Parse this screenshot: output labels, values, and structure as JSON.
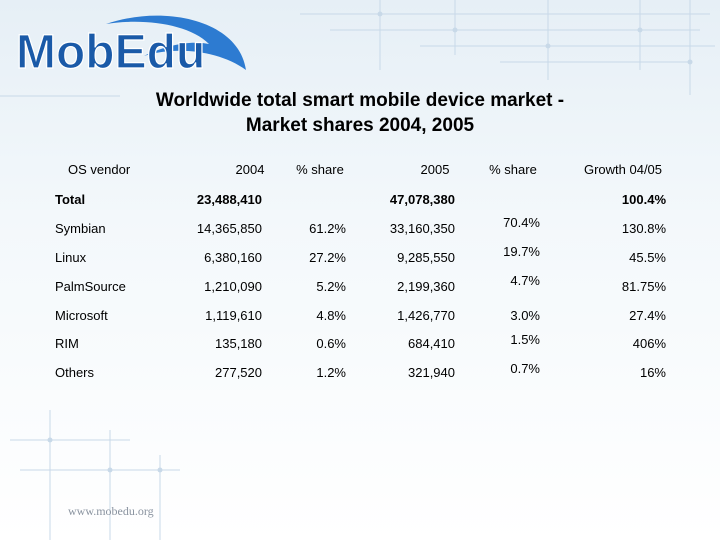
{
  "logo": {
    "text": "MobEdu",
    "colors": {
      "mob": "#1a5aa8",
      "edu": "#1a5aa8",
      "swoosh": "#2d7bd1"
    }
  },
  "title_line1": "Worldwide total smart mobile device market -",
  "title_line2": "Market shares 2004, 2005",
  "headers": {
    "vendor": "OS vendor",
    "y2004": "2004",
    "share2004": "% share",
    "y2005": "2005",
    "share2005": "% share",
    "growth": "Growth 04/05"
  },
  "total": {
    "label": "Total",
    "y2004": "23,488,410",
    "y2005": "47,078,380",
    "growth": "100.4%"
  },
  "rows": [
    {
      "vendor": "Symbian",
      "y2004": "14,365,850",
      "share2004": "61.2%",
      "y2005": "33,160,350",
      "share2005": "70.4%",
      "growth": "130.8%"
    },
    {
      "vendor": "Linux",
      "y2004": "6,380,160",
      "share2004": "27.2%",
      "y2005": "9,285,550",
      "share2005": "19.7%",
      "growth": "45.5%"
    },
    {
      "vendor": "PalmSource",
      "y2004": "1,210,090",
      "share2004": "5.2%",
      "y2005": "2,199,360",
      "share2005": "4.7%",
      "growth": "81.75%"
    },
    {
      "vendor": "Microsoft",
      "y2004": "1,119,610",
      "share2004": "4.8%",
      "y2005": "1,426,770",
      "share2005": "3.0%",
      "growth": "27.4%"
    },
    {
      "vendor": "RIM",
      "y2004": "135,180",
      "share2004": "0.6%",
      "y2005": "684,410",
      "share2005": "1.5%",
      "growth": "406%"
    },
    {
      "vendor": "Others",
      "y2004": "277,520",
      "share2004": "1.2%",
      "y2005": "321,940",
      "share2005": "0.7%",
      "growth": "16%"
    }
  ],
  "footer": "www.mobedu.org"
}
